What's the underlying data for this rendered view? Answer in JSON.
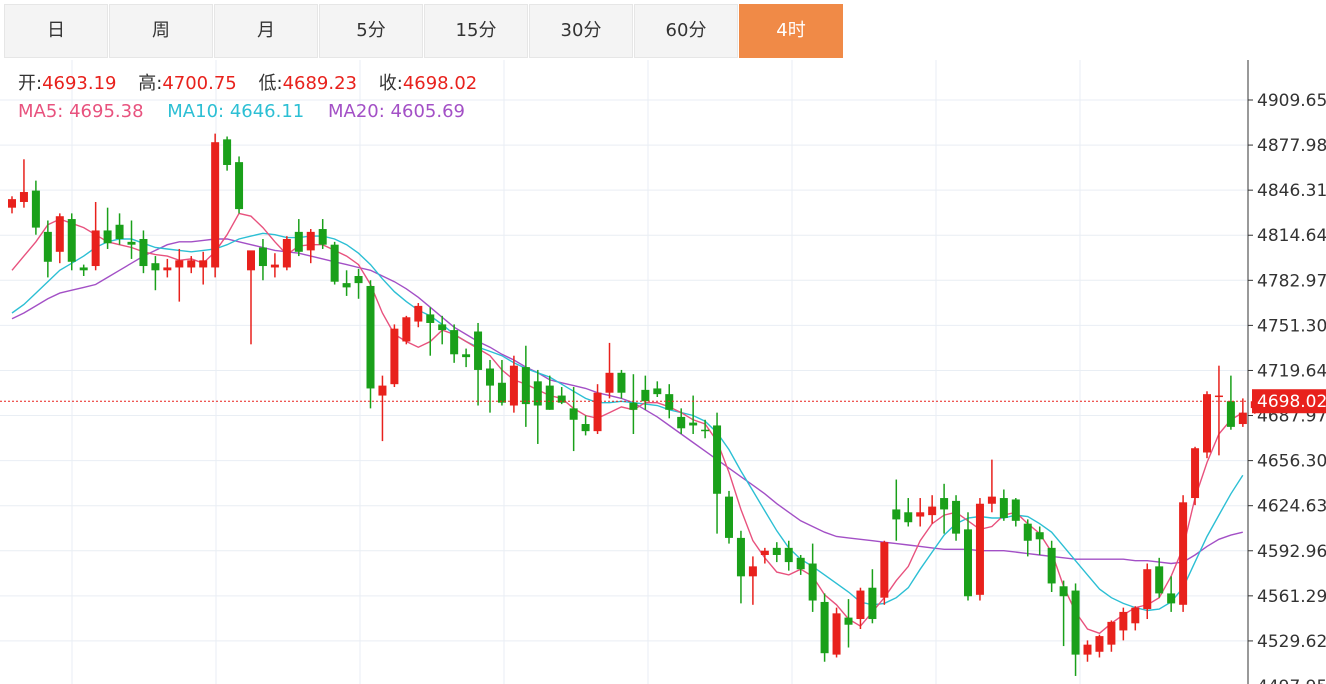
{
  "tabs": [
    {
      "label": "日",
      "active": false
    },
    {
      "label": "周",
      "active": false
    },
    {
      "label": "月",
      "active": false
    },
    {
      "label": "5分",
      "active": false
    },
    {
      "label": "15分",
      "active": false
    },
    {
      "label": "30分",
      "active": false
    },
    {
      "label": "60分",
      "active": false
    },
    {
      "label": "4时",
      "active": true
    }
  ],
  "info": {
    "open_label": "开:",
    "open": "4693.19",
    "high_label": "高:",
    "high": "4700.75",
    "low_label": "低:",
    "low": "4689.23",
    "close_label": "收:",
    "close": "4698.02",
    "ma5_label": "MA5:",
    "ma5": "4695.38",
    "ma10_label": "MA10:",
    "ma10": "4646.11",
    "ma20_label": "MA20:",
    "ma20": "4605.69"
  },
  "colors": {
    "up": "#e8211c",
    "down": "#1aa01a",
    "ma5": "#e8527e",
    "ma10": "#2cbfd4",
    "ma20": "#a350c6",
    "accent": "#f08a47"
  },
  "chart_data": {
    "type": "candlestick",
    "y_ticks": [
      "4909.65",
      "4877.98",
      "4846.31",
      "4814.64",
      "4782.97",
      "4751.30",
      "4719.64",
      "4687.97",
      "4656.30",
      "4624.63",
      "4592.96",
      "4561.29",
      "4529.62",
      "4497.95"
    ],
    "ylim": [
      4497.95,
      4909.65
    ],
    "current_price": "4698.02",
    "grid": true,
    "candles": [
      {
        "o": 4834,
        "h": 4842,
        "l": 4830,
        "c": 4840
      },
      {
        "o": 4838,
        "h": 4868,
        "l": 4834,
        "c": 4845
      },
      {
        "o": 4846,
        "h": 4853,
        "l": 4815,
        "c": 4820
      },
      {
        "o": 4817,
        "h": 4825,
        "l": 4785,
        "c": 4796
      },
      {
        "o": 4803,
        "h": 4830,
        "l": 4795,
        "c": 4828
      },
      {
        "o": 4826,
        "h": 4830,
        "l": 4790,
        "c": 4796
      },
      {
        "o": 4792,
        "h": 4794,
        "l": 4786,
        "c": 4790
      },
      {
        "o": 4793,
        "h": 4838,
        "l": 4790,
        "c": 4818
      },
      {
        "o": 4818,
        "h": 4834,
        "l": 4805,
        "c": 4809
      },
      {
        "o": 4822,
        "h": 4830,
        "l": 4808,
        "c": 4812
      },
      {
        "o": 4810,
        "h": 4825,
        "l": 4798,
        "c": 4808
      },
      {
        "o": 4812,
        "h": 4818,
        "l": 4788,
        "c": 4793
      },
      {
        "o": 4795,
        "h": 4800,
        "l": 4776,
        "c": 4790
      },
      {
        "o": 4790,
        "h": 4798,
        "l": 4785,
        "c": 4792
      },
      {
        "o": 4792,
        "h": 4805,
        "l": 4768,
        "c": 4797
      },
      {
        "o": 4792,
        "h": 4800,
        "l": 4788,
        "c": 4797
      },
      {
        "o": 4792,
        "h": 4803,
        "l": 4780,
        "c": 4797
      },
      {
        "o": 4792,
        "h": 4886,
        "l": 4785,
        "c": 4880
      },
      {
        "o": 4882,
        "h": 4884,
        "l": 4860,
        "c": 4864
      },
      {
        "o": 4866,
        "h": 4870,
        "l": 4830,
        "c": 4833
      },
      {
        "o": 4790,
        "h": 4802,
        "l": 4738,
        "c": 4804
      },
      {
        "o": 4806,
        "h": 4812,
        "l": 4783,
        "c": 4793
      },
      {
        "o": 4792,
        "h": 4802,
        "l": 4785,
        "c": 4794
      },
      {
        "o": 4792,
        "h": 4814,
        "l": 4790,
        "c": 4812
      },
      {
        "o": 4817,
        "h": 4826,
        "l": 4800,
        "c": 4803
      },
      {
        "o": 4804,
        "h": 4819,
        "l": 4795,
        "c": 4817
      },
      {
        "o": 4819,
        "h": 4826,
        "l": 4805,
        "c": 4808
      },
      {
        "o": 4808,
        "h": 4810,
        "l": 4780,
        "c": 4782
      },
      {
        "o": 4781,
        "h": 4790,
        "l": 4772,
        "c": 4778
      },
      {
        "o": 4786,
        "h": 4791,
        "l": 4770,
        "c": 4781
      },
      {
        "o": 4779,
        "h": 4783,
        "l": 4693,
        "c": 4707
      },
      {
        "o": 4702,
        "h": 4716,
        "l": 4670,
        "c": 4709
      },
      {
        "o": 4710,
        "h": 4752,
        "l": 4708,
        "c": 4749
      },
      {
        "o": 4740,
        "h": 4758,
        "l": 4738,
        "c": 4757
      },
      {
        "o": 4754,
        "h": 4767,
        "l": 4750,
        "c": 4765
      },
      {
        "o": 4759,
        "h": 4764,
        "l": 4730,
        "c": 4753
      },
      {
        "o": 4752,
        "h": 4758,
        "l": 4738,
        "c": 4748
      },
      {
        "o": 4748,
        "h": 4752,
        "l": 4725,
        "c": 4731
      },
      {
        "o": 4731,
        "h": 4735,
        "l": 4722,
        "c": 4729
      },
      {
        "o": 4747,
        "h": 4753,
        "l": 4695,
        "c": 4720
      },
      {
        "o": 4721,
        "h": 4727,
        "l": 4690,
        "c": 4709
      },
      {
        "o": 4711,
        "h": 4727,
        "l": 4695,
        "c": 4697
      },
      {
        "o": 4695,
        "h": 4730,
        "l": 4690,
        "c": 4723
      },
      {
        "o": 4722,
        "h": 4737,
        "l": 4680,
        "c": 4696
      },
      {
        "o": 4712,
        "h": 4720,
        "l": 4668,
        "c": 4695
      },
      {
        "o": 4709,
        "h": 4716,
        "l": 4692,
        "c": 4692
      },
      {
        "o": 4702,
        "h": 4708,
        "l": 4696,
        "c": 4697
      },
      {
        "o": 4693,
        "h": 4708,
        "l": 4663,
        "c": 4685
      },
      {
        "o": 4682,
        "h": 4688,
        "l": 4674,
        "c": 4677
      },
      {
        "o": 4677,
        "h": 4710,
        "l": 4675,
        "c": 4704
      },
      {
        "o": 4704,
        "h": 4739,
        "l": 4700,
        "c": 4718
      },
      {
        "o": 4718,
        "h": 4720,
        "l": 4700,
        "c": 4704
      },
      {
        "o": 4697,
        "h": 4717,
        "l": 4675,
        "c": 4692
      },
      {
        "o": 4706,
        "h": 4716,
        "l": 4692,
        "c": 4698
      },
      {
        "o": 4707,
        "h": 4712,
        "l": 4701,
        "c": 4703
      },
      {
        "o": 4703,
        "h": 4710,
        "l": 4686,
        "c": 4692
      },
      {
        "o": 4687,
        "h": 4693,
        "l": 4675,
        "c": 4679
      },
      {
        "o": 4683,
        "h": 4702,
        "l": 4675,
        "c": 4681
      },
      {
        "o": 4678,
        "h": 4685,
        "l": 4672,
        "c": 4677
      },
      {
        "o": 4681,
        "h": 4690,
        "l": 4605,
        "c": 4633
      },
      {
        "o": 4631,
        "h": 4635,
        "l": 4598,
        "c": 4602
      },
      {
        "o": 4602,
        "h": 4607,
        "l": 4556,
        "c": 4575
      },
      {
        "o": 4575,
        "h": 4589,
        "l": 4555,
        "c": 4582
      },
      {
        "o": 4590,
        "h": 4595,
        "l": 4584,
        "c": 4593
      },
      {
        "o": 4595,
        "h": 4599,
        "l": 4585,
        "c": 4590
      },
      {
        "o": 4595,
        "h": 4600,
        "l": 4579,
        "c": 4585
      },
      {
        "o": 4588,
        "h": 4590,
        "l": 4576,
        "c": 4580
      },
      {
        "o": 4584,
        "h": 4598,
        "l": 4550,
        "c": 4558
      },
      {
        "o": 4557,
        "h": 4563,
        "l": 4515,
        "c": 4521
      },
      {
        "o": 4520,
        "h": 4553,
        "l": 4518,
        "c": 4549
      },
      {
        "o": 4546,
        "h": 4559,
        "l": 4525,
        "c": 4541
      },
      {
        "o": 4545,
        "h": 4567,
        "l": 4538,
        "c": 4565
      },
      {
        "o": 4567,
        "h": 4580,
        "l": 4542,
        "c": 4545
      },
      {
        "o": 4560,
        "h": 4600,
        "l": 4555,
        "c": 4599
      },
      {
        "o": 4622,
        "h": 4643,
        "l": 4600,
        "c": 4615
      },
      {
        "o": 4620,
        "h": 4630,
        "l": 4610,
        "c": 4613
      },
      {
        "o": 4617,
        "h": 4630,
        "l": 4610,
        "c": 4620
      },
      {
        "o": 4618,
        "h": 4632,
        "l": 4612,
        "c": 4624
      },
      {
        "o": 4630,
        "h": 4640,
        "l": 4605,
        "c": 4622
      },
      {
        "o": 4628,
        "h": 4632,
        "l": 4600,
        "c": 4605
      },
      {
        "o": 4608,
        "h": 4620,
        "l": 4558,
        "c": 4561
      },
      {
        "o": 4562,
        "h": 4630,
        "l": 4558,
        "c": 4626
      },
      {
        "o": 4626,
        "h": 4657,
        "l": 4620,
        "c": 4631
      },
      {
        "o": 4630,
        "h": 4636,
        "l": 4614,
        "c": 4616
      },
      {
        "o": 4629,
        "h": 4630,
        "l": 4610,
        "c": 4614
      },
      {
        "o": 4612,
        "h": 4615,
        "l": 4589,
        "c": 4600
      },
      {
        "o": 4606,
        "h": 4610,
        "l": 4590,
        "c": 4601
      },
      {
        "o": 4595,
        "h": 4600,
        "l": 4564,
        "c": 4570
      },
      {
        "o": 4568,
        "h": 4572,
        "l": 4526,
        "c": 4561
      },
      {
        "o": 4565,
        "h": 4570,
        "l": 4505,
        "c": 4520
      },
      {
        "o": 4520,
        "h": 4530,
        "l": 4515,
        "c": 4527
      },
      {
        "o": 4522,
        "h": 4534,
        "l": 4518,
        "c": 4533
      },
      {
        "o": 4527,
        "h": 4544,
        "l": 4522,
        "c": 4543
      },
      {
        "o": 4537,
        "h": 4553,
        "l": 4530,
        "c": 4550
      },
      {
        "o": 4542,
        "h": 4554,
        "l": 4537,
        "c": 4553
      },
      {
        "o": 4552,
        "h": 4584,
        "l": 4545,
        "c": 4580
      },
      {
        "o": 4582,
        "h": 4588,
        "l": 4560,
        "c": 4563
      },
      {
        "o": 4563,
        "h": 4575,
        "l": 4550,
        "c": 4556
      },
      {
        "o": 4555,
        "h": 4632,
        "l": 4550,
        "c": 4627
      },
      {
        "o": 4630,
        "h": 4666,
        "l": 4625,
        "c": 4665
      },
      {
        "o": 4662,
        "h": 4705,
        "l": 4658,
        "c": 4703
      },
      {
        "o": 4702,
        "h": 4723,
        "l": 4660,
        "c": 4702
      },
      {
        "o": 4698,
        "h": 4716,
        "l": 4678,
        "c": 4680
      },
      {
        "o": 4682,
        "h": 4700,
        "l": 4680,
        "c": 4690
      },
      {
        "o": 4693.19,
        "h": 4700.75,
        "l": 4689.23,
        "c": 4698.02
      }
    ],
    "ma5": [
      4790,
      4800,
      4810,
      4822,
      4826,
      4823,
      4820,
      4815,
      4810,
      4808,
      4806,
      4803,
      4801,
      4800,
      4797,
      4798,
      4795,
      4803,
      4815,
      4830,
      4828,
      4820,
      4810,
      4801,
      4807,
      4808,
      4808,
      4804,
      4800,
      4794,
      4780,
      4760,
      4745,
      4740,
      4736,
      4740,
      4748,
      4745,
      4740,
      4735,
      4730,
      4720,
      4713,
      4710,
      4706,
      4702,
      4700,
      4693,
      4688,
      4686,
      4690,
      4694,
      4692,
      4697,
      4697,
      4694,
      4690,
      4685,
      4682,
      4670,
      4648,
      4622,
      4600,
      4588,
      4578,
      4576,
      4580,
      4575,
      4562,
      4555,
      4545,
      4540,
      4550,
      4560,
      4572,
      4582,
      4600,
      4612,
      4618,
      4620,
      4614,
      4608,
      4610,
      4618,
      4620,
      4612,
      4605,
      4592,
      4568,
      4550,
      4538,
      4535,
      4542,
      4548,
      4553,
      4555,
      4560,
      4575,
      4595,
      4630,
      4655,
      4675,
      4685,
      4690
    ],
    "ma10": [
      4760,
      4766,
      4774,
      4782,
      4790,
      4795,
      4800,
      4806,
      4810,
      4812,
      4812,
      4809,
      4806,
      4805,
      4804,
      4803,
      4804,
      4805,
      4808,
      4812,
      4814,
      4816,
      4815,
      4813,
      4813,
      4814,
      4814,
      4812,
      4808,
      4802,
      4794,
      4784,
      4775,
      4768,
      4762,
      4758,
      4752,
      4745,
      4740,
      4736,
      4733,
      4730,
      4725,
      4721,
      4718,
      4715,
      4710,
      4705,
      4700,
      4697,
      4697,
      4698,
      4697,
      4696,
      4695,
      4692,
      4690,
      4688,
      4684,
      4676,
      4664,
      4649,
      4635,
      4621,
      4607,
      4595,
      4587,
      4582,
      4576,
      4570,
      4564,
      4557,
      4555,
      4556,
      4560,
      4567,
      4580,
      4592,
      4604,
      4612,
      4616,
      4617,
      4616,
      4616,
      4618,
      4617,
      4612,
      4606,
      4596,
      4586,
      4576,
      4566,
      4560,
      4556,
      4553,
      4551,
      4552,
      4557,
      4567,
      4585,
      4603,
      4618,
      4633,
      4646
    ],
    "ma20": [
      4756,
      4760,
      4765,
      4770,
      4774,
      4776,
      4778,
      4780,
      4785,
      4790,
      4795,
      4800,
      4804,
      4808,
      4810,
      4810,
      4811,
      4812,
      4812,
      4810,
      4808,
      4806,
      4804,
      4803,
      4802,
      4800,
      4798,
      4796,
      4794,
      4792,
      4790,
      4786,
      4782,
      4777,
      4771,
      4764,
      4757,
      4750,
      4745,
      4740,
      4736,
      4731,
      4727,
      4722,
      4718,
      4713,
      4711,
      4709,
      4707,
      4704,
      4702,
      4700,
      4697,
      4692,
      4687,
      4681,
      4675,
      4669,
      4663,
      4657,
      4651,
      4645,
      4639,
      4633,
      4626,
      4620,
      4614,
      4610,
      4606,
      4603,
      4602,
      4601,
      4600,
      4599,
      4598,
      4597,
      4596,
      4595,
      4594,
      4594,
      4594,
      4593,
      4593,
      4593,
      4592,
      4591,
      4590,
      4589,
      4588,
      4587,
      4587,
      4587,
      4587,
      4587,
      4586,
      4586,
      4585,
      4584,
      4585,
      4590,
      4596,
      4601,
      4604,
      4606
    ]
  }
}
